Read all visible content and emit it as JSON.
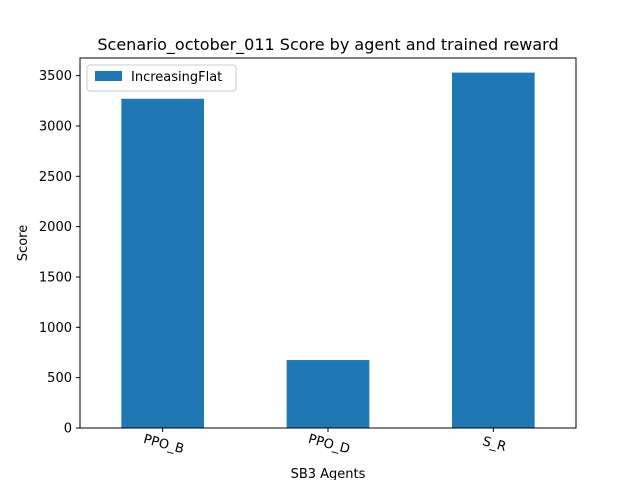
{
  "chart_data": {
    "type": "bar",
    "title": "Scenario_october_011 Score by agent and trained reward",
    "xlabel": "SB3 Agents",
    "ylabel": "Score",
    "categories": [
      "PPO_B",
      "PPO_D",
      "S_R"
    ],
    "series": [
      {
        "name": "IncreasingFlat",
        "values": [
          3270,
          675,
          3530
        ],
        "color": "#1f77b4"
      }
    ],
    "ylim": [
      0,
      3675
    ],
    "yticks": [
      0,
      500,
      1000,
      1500,
      2000,
      2500,
      3000,
      3500
    ],
    "grid": false,
    "legend_position": "top-left",
    "xtick_rotation_deg": -15
  }
}
